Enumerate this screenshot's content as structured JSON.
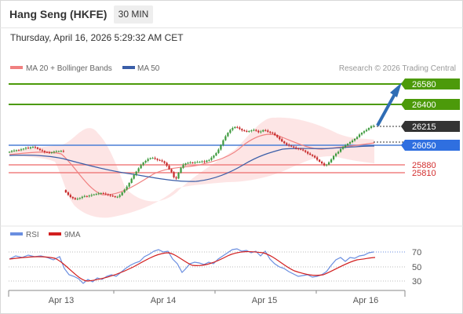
{
  "header": {
    "title": "Hang Seng (HKFE)",
    "timeframe": "30 MIN",
    "datetime": "Thursday, April 16, 2026 5:29:32 AM CET"
  },
  "legend": {
    "ma20_label": "MA 20 + Bollinger Bands",
    "ma50_label": "MA 50",
    "credit": "Research © 2026 Trading Central",
    "rsi_label": "RSI",
    "ma9_label": "9MA"
  },
  "colors": {
    "ma20": "#f08080",
    "ma50": "#3a5ea8",
    "band_fill": "#fde0e0",
    "up_candle": "#3d9a3d",
    "down_candle": "#c62828",
    "resistance": "#4c9a0a",
    "pivot": "#4a7fd6",
    "support": "#f08080",
    "rsi": "#6a8ee0",
    "ma9": "#d21f1f",
    "arrow": "#2f6db5"
  },
  "levels": [
    {
      "value": 26580,
      "label": "26580",
      "kind": "resistance"
    },
    {
      "value": 26400,
      "label": "26400",
      "kind": "resistance"
    },
    {
      "value": 26215,
      "label": "26215",
      "kind": "current"
    },
    {
      "value": 26050,
      "label": "26050",
      "kind": "pivot"
    },
    {
      "value": 25880,
      "label": "25880",
      "kind": "support"
    },
    {
      "value": 25810,
      "label": "25810",
      "kind": "support"
    }
  ],
  "x_axis": {
    "labels": [
      "Apr 13",
      "Apr 14",
      "Apr 15",
      "Apr 16"
    ]
  },
  "rsi_axis": {
    "labels": [
      "70",
      "50",
      "30"
    ]
  },
  "chart_data": {
    "type": "candlestick",
    "close_series": [
      25990,
      25998,
      26002,
      26005,
      26004,
      26012,
      26018,
      26026,
      26020,
      26030,
      26033,
      26028,
      26016,
      26005,
      25998,
      25988,
      25985,
      25982,
      25986,
      25992,
      25994,
      25996,
      25998,
      25995,
      25640,
      25618,
      25600,
      25590,
      25580,
      25585,
      25592,
      25602,
      25608,
      25605,
      25612,
      25618,
      25622,
      25626,
      25631,
      25634,
      25630,
      25625,
      25618,
      25612,
      25606,
      25600,
      25602,
      25615,
      25640,
      25664,
      25690,
      25722,
      25758,
      25790,
      25820,
      25848,
      25875,
      25898,
      25912,
      25928,
      25936,
      25938,
      25930,
      25920,
      25916,
      25908,
      25895,
      25870,
      25840,
      25815,
      25770,
      25760,
      25810,
      25852,
      25880,
      25890,
      25895,
      25898,
      25897,
      25900,
      25902,
      25904,
      25908,
      25903,
      25915,
      25920,
      25940,
      25958,
      25980,
      26010,
      26050,
      26090,
      26125,
      26155,
      26180,
      26196,
      26205,
      26200,
      26188,
      26176,
      26170,
      26166,
      26170,
      26175,
      26180,
      26172,
      26160,
      26166,
      26178,
      26174,
      26164,
      26156,
      26150,
      26135,
      26118,
      26100,
      26080,
      26065,
      26052,
      26044,
      26036,
      26028,
      26020,
      26016,
      26010,
      26002,
      25990,
      25975,
      25965,
      25955,
      25942,
      25922,
      25905,
      25890,
      25874,
      25880,
      25900,
      25925,
      25955,
      25975,
      25990,
      26015,
      26032,
      26046,
      26060,
      26074,
      26088,
      26102,
      26118,
      26140,
      26155,
      26168,
      26180,
      26196,
      26212,
      26215
    ]
  }
}
